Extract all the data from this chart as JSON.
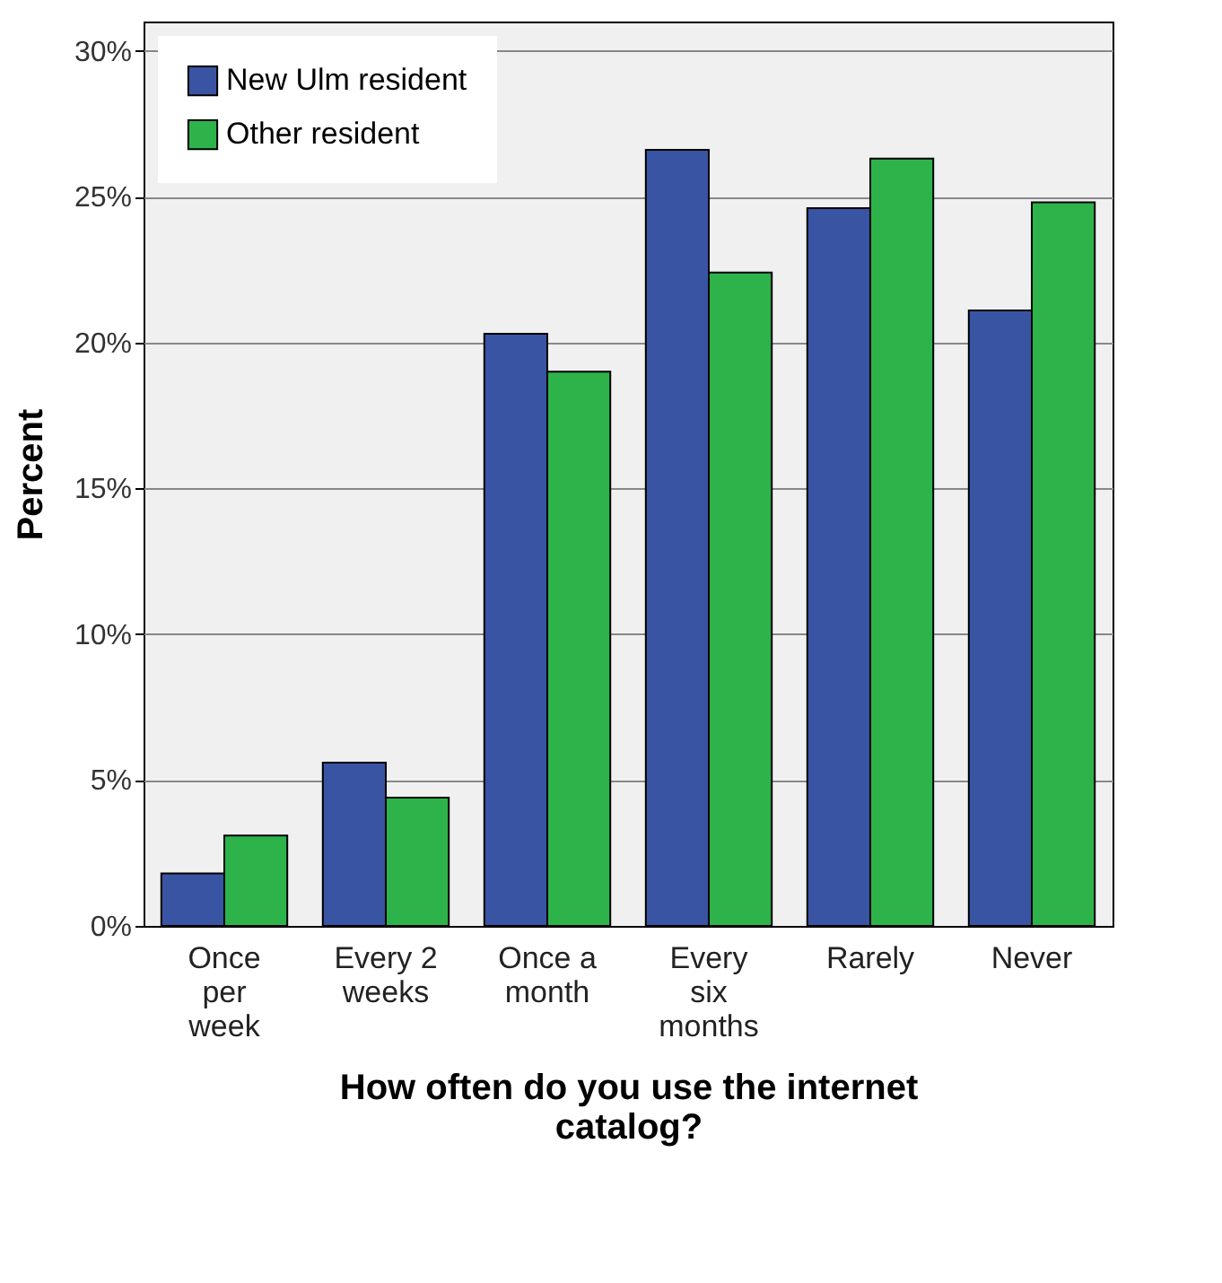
{
  "chart_data": {
    "type": "bar",
    "xlabel": "How often do you use the internet catalog?",
    "ylabel": "Percent",
    "categories": [
      "Once per week",
      "Every 2 weeks",
      "Once a month",
      "Every six months",
      "Rarely",
      "Never"
    ],
    "series": [
      {
        "name": "New Ulm resident",
        "color": "#3a54a4",
        "values": [
          1.8,
          5.6,
          20.3,
          26.6,
          24.6,
          21.1
        ]
      },
      {
        "name": "Other resident",
        "color": "#2db34a",
        "values": [
          3.1,
          4.4,
          19.0,
          22.4,
          26.3,
          24.8
        ]
      }
    ],
    "ylim": [
      0,
      31
    ],
    "yticks": [
      {
        "value": 0,
        "label": "0%"
      },
      {
        "value": 5,
        "label": "5%"
      },
      {
        "value": 10,
        "label": "10%"
      },
      {
        "value": 15,
        "label": "15%"
      },
      {
        "value": 20,
        "label": "20%"
      },
      {
        "value": 25,
        "label": "25%"
      },
      {
        "value": 30,
        "label": "30%"
      }
    ],
    "grid": "y",
    "legend": "top left"
  }
}
